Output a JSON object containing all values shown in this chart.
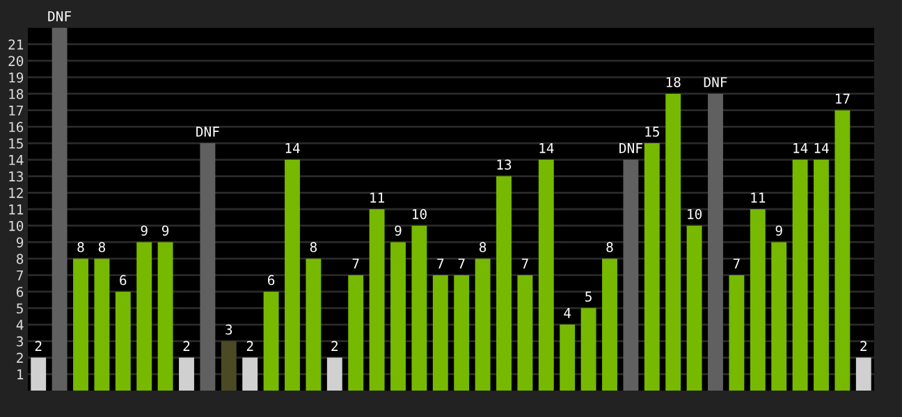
{
  "chart_data": {
    "type": "bar",
    "categories": [
      null,
      null,
      null,
      null,
      null,
      null,
      null,
      null,
      null,
      null,
      null,
      null,
      null,
      null,
      null,
      null,
      null,
      null,
      null,
      null,
      null,
      null,
      null,
      null,
      null,
      null,
      null,
      null,
      null,
      null,
      null,
      null,
      null,
      null,
      null,
      null,
      null,
      null,
      null,
      null
    ],
    "values": [
      2,
      22,
      8,
      8,
      6,
      9,
      9,
      2,
      15,
      3,
      2,
      6,
      14,
      8,
      2,
      7,
      11,
      9,
      10,
      7,
      7,
      8,
      13,
      7,
      14,
      4,
      5,
      8,
      14,
      15,
      18,
      10,
      18,
      7,
      11,
      9,
      14,
      14,
      17,
      2
    ],
    "value_labels": [
      "2",
      "DNF",
      "8",
      "8",
      "6",
      "9",
      "9",
      "2",
      "DNF",
      "3",
      "2",
      "6",
      "14",
      "8",
      "2",
      "7",
      "11",
      "9",
      "10",
      "7",
      "7",
      "8",
      "13",
      "7",
      "14",
      "4",
      "5",
      "8",
      "DNF",
      "15",
      "18",
      "10",
      "DNF",
      "7",
      "11",
      "9",
      "14",
      "14",
      "17",
      "2"
    ],
    "colors": [
      "#d0d0d0",
      "#606060",
      "#76b900",
      "#76b900",
      "#76b900",
      "#76b900",
      "#76b900",
      "#d0d0d0",
      "#606060",
      "#4b4a25",
      "#d0d0d0",
      "#76b900",
      "#76b900",
      "#76b900",
      "#d0d0d0",
      "#76b900",
      "#76b900",
      "#76b900",
      "#76b900",
      "#76b900",
      "#76b900",
      "#76b900",
      "#76b900",
      "#76b900",
      "#76b900",
      "#76b900",
      "#76b900",
      "#76b900",
      "#606060",
      "#76b900",
      "#76b900",
      "#76b900",
      "#606060",
      "#76b900",
      "#76b900",
      "#76b900",
      "#76b900",
      "#76b900",
      "#76b900",
      "#d0d0d0"
    ],
    "ylim": [
      0,
      22
    ],
    "yticks": [
      1,
      2,
      3,
      4,
      5,
      6,
      7,
      8,
      9,
      10,
      11,
      12,
      13,
      14,
      15,
      16,
      17,
      18,
      19,
      20,
      21
    ],
    "grid": "y",
    "tick_labels": "y"
  }
}
